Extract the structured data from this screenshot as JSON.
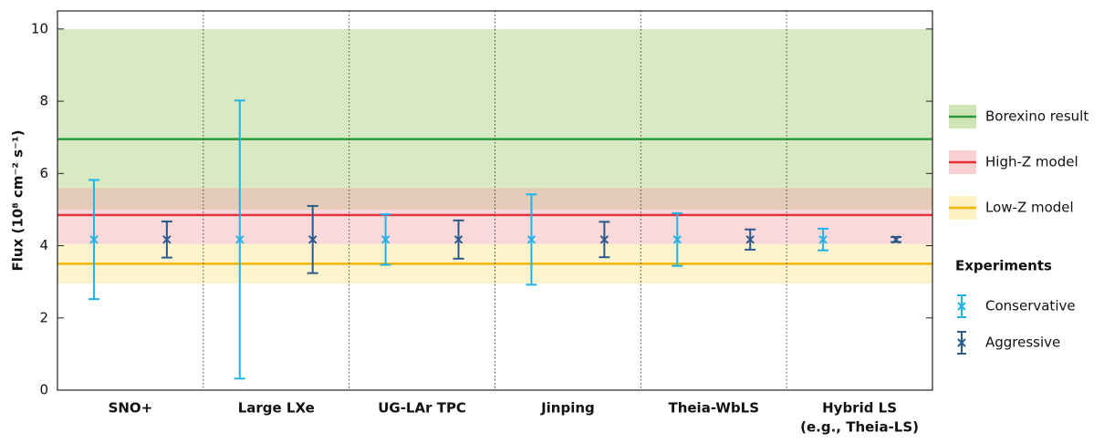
{
  "chart_data": {
    "type": "errorbar",
    "ylabel": "Flux (10⁸ cm⁻² s⁻¹)",
    "ylim": [
      0,
      10.5
    ],
    "yticks": [
      0,
      2,
      4,
      6,
      8,
      10
    ],
    "categories": [
      "SNO+",
      "Large LXe",
      "UG-LAr TPC",
      "Jinping",
      "Theia-WbLS",
      [
        "Hybrid LS",
        "(e.g., Theia-LS)"
      ]
    ],
    "bands": [
      {
        "name": "Borexino result",
        "color": "#2a9a3b",
        "fill": "#a8d07a",
        "value": 6.95,
        "range": [
          5.0,
          10.0
        ]
      },
      {
        "name": "High-Z model",
        "color": "#e8303a",
        "fill": "#f7a9ae",
        "value": 4.85,
        "range": [
          4.05,
          5.6
        ]
      },
      {
        "name": "Low-Z model",
        "color": "#f0b400",
        "fill": "#fbe591",
        "value": 3.5,
        "range": [
          2.95,
          4.05
        ]
      }
    ],
    "legend_title": "Experiments",
    "series": [
      {
        "name": "Conservative",
        "color": "#1fb3e6",
        "values": [
          4.17,
          4.17,
          4.17,
          4.17,
          4.17,
          4.17
        ],
        "errors": [
          1.65,
          3.85,
          0.7,
          1.25,
          0.73,
          0.3
        ]
      },
      {
        "name": "Aggressive",
        "color": "#2a5a8a",
        "values": [
          4.17,
          4.17,
          4.17,
          4.17,
          4.17,
          4.17
        ],
        "errors": [
          0.5,
          0.93,
          0.53,
          0.49,
          0.28,
          0.07
        ]
      }
    ]
  }
}
